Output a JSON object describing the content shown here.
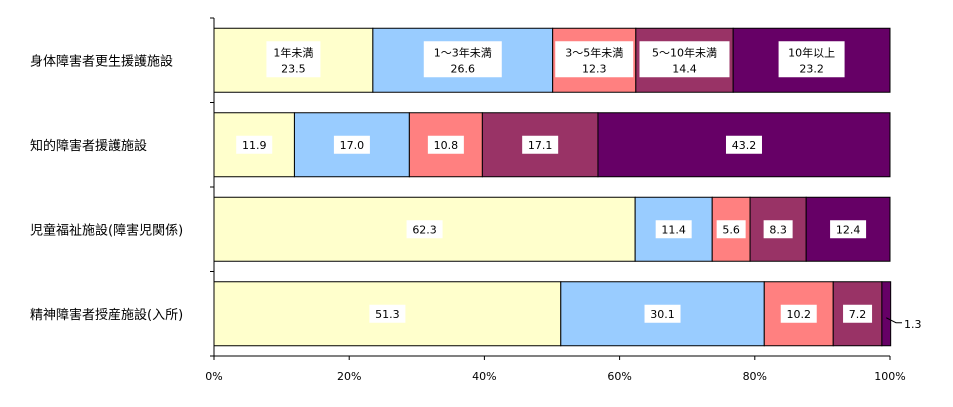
{
  "chart_data": {
    "type": "bar",
    "orientation": "horizontal",
    "stacked": "percent",
    "categories": [
      "身体障害者更生援護施設",
      "知的障害者援護施設",
      "児童福祉施設(障害児関係)",
      "精神障害者授産施設(入所)"
    ],
    "series": [
      {
        "name": "1年未満",
        "values": [
          23.5,
          11.9,
          62.3,
          51.3
        ],
        "color": "#FFFFCC"
      },
      {
        "name": "1～3年未満",
        "values": [
          26.6,
          17.0,
          11.4,
          30.1
        ],
        "color": "#99CCFF"
      },
      {
        "name": "3～5年未満",
        "values": [
          12.3,
          10.8,
          5.6,
          10.2
        ],
        "color": "#FF8080"
      },
      {
        "name": "5～10年未満",
        "values": [
          14.4,
          17.1,
          8.3,
          7.2
        ],
        "color": "#993366"
      },
      {
        "name": "10年以上",
        "values": [
          23.2,
          43.2,
          12.4,
          1.3
        ],
        "color": "#660066"
      }
    ],
    "value_labels": [
      [
        "23.5",
        "26.6",
        "12.3",
        "14.4",
        "23.2"
      ],
      [
        "11.9",
        "17.0",
        "10.8",
        "17.1",
        "43.2"
      ],
      [
        "62.3",
        "11.4",
        "5.6",
        "8.3",
        "12.4"
      ],
      [
        "51.3",
        "30.1",
        "10.2",
        "7.2",
        "1.3"
      ]
    ],
    "xticks": [
      "0%",
      "20%",
      "40%",
      "60%",
      "80%",
      "100%"
    ],
    "xlim": [
      0,
      100
    ],
    "grid": false,
    "legend": "inside first bar"
  }
}
